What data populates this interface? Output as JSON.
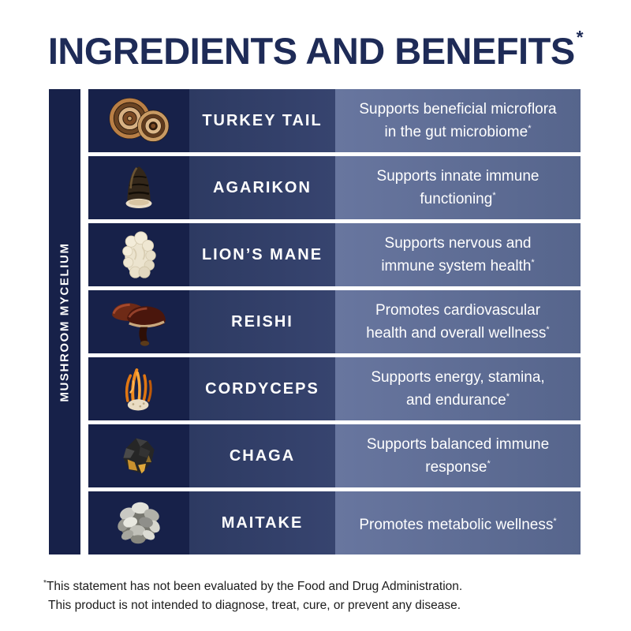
{
  "footnote_symbol": "*",
  "title": {
    "text": "INGREDIENTS AND BENEFITS"
  },
  "sidebar": {
    "label": "MUSHROOM MYCELIUM"
  },
  "table": {
    "rows": [
      {
        "name": "TURKEY TAIL",
        "image": "turkey-tail",
        "benefit_lines": [
          "Supports beneficial microflora",
          "in the gut microbiome"
        ]
      },
      {
        "name": "AGARIKON",
        "image": "agarikon",
        "benefit_lines": [
          "Supports innate immune",
          "functioning"
        ]
      },
      {
        "name": "LION’S MANE",
        "image": "lions-mane",
        "benefit_lines": [
          "Supports nervous and",
          "immune system health"
        ]
      },
      {
        "name": "REISHI",
        "image": "reishi",
        "benefit_lines": [
          "Promotes cardiovascular",
          "health and overall wellness"
        ]
      },
      {
        "name": "CORDYCEPS",
        "image": "cordyceps",
        "benefit_lines": [
          "Supports energy, stamina,",
          "and endurance"
        ]
      },
      {
        "name": "CHAGA",
        "image": "chaga",
        "benefit_lines": [
          "Supports balanced immune",
          "response"
        ]
      },
      {
        "name": "MAITAKE",
        "image": "maitake",
        "benefit_lines": [
          "Promotes metabolic wellness"
        ]
      }
    ]
  },
  "footer": {
    "lines": [
      "This statement has not been evaluated by the Food and Drug Administration.",
      "This product is not intended to diagnose, treat, cure, or prevent any disease."
    ]
  },
  "colors": {
    "navy_dark": "#172149",
    "navy_mid": "#323f69",
    "benefit_left": "#68769f",
    "benefit_right": "#56658c",
    "title": "#1e2b57",
    "text_on_dark": "#ffffff",
    "footer_text": "#1c1c1c"
  }
}
